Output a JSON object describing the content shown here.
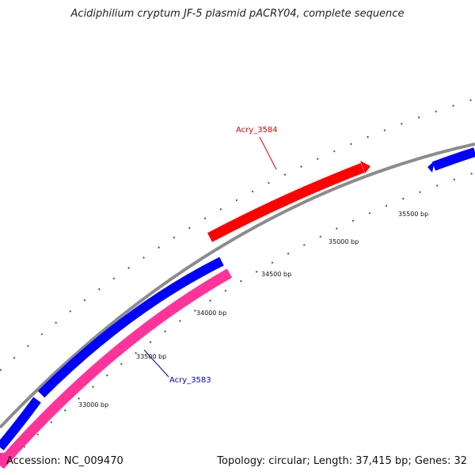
{
  "title": "Acidiphilium cryptum JF-5 plasmid pACRY04, complete sequence",
  "footer": {
    "accession": "Accession: NC_009470",
    "summary": "Topology: circular; Length: 37,415 bp; Genes: 32"
  },
  "colors": {
    "backbone": "#8c8c8c",
    "forward_gene": "#ff0000",
    "reverse_gene": "#0000ff",
    "other_gene": "#ff3399",
    "tick": "#1a7a1a",
    "label_forward": "#dd0000",
    "label_reverse": "#0000cc"
  },
  "scale_labels": [
    "33000 bp",
    "33500 bp",
    "34000 bp",
    "34500 bp",
    "35000 bp",
    "35500 bp"
  ],
  "gene_labels": [
    "Acry_3584",
    "Acry_3583"
  ]
}
